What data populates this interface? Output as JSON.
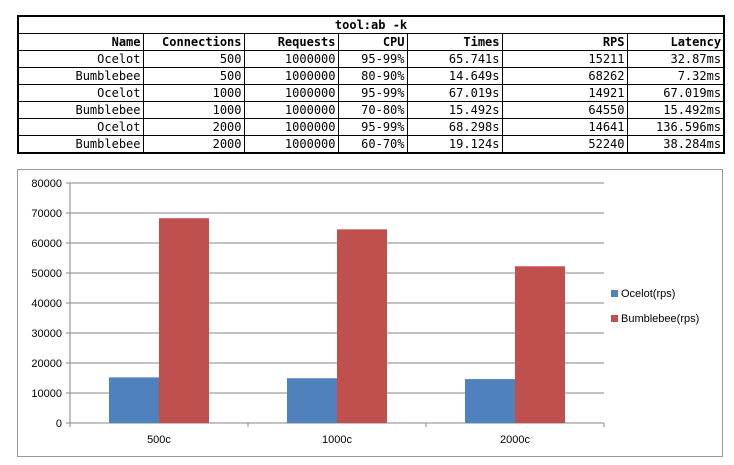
{
  "table": {
    "title": "tool:ab -k",
    "columns": [
      "Name",
      "Connections",
      "Requests",
      "CPU",
      "Times",
      "RPS",
      "Latency"
    ],
    "rows": [
      [
        "Ocelot",
        "500",
        "1000000",
        "95-99%",
        "65.741s",
        "15211",
        "32.87ms"
      ],
      [
        "Bumblebee",
        "500",
        "1000000",
        "80-90%",
        "14.649s",
        "68262",
        "7.32ms"
      ],
      [
        "Ocelot",
        "1000",
        "1000000",
        "95-99%",
        "67.019s",
        "14921",
        "67.019ms"
      ],
      [
        "Bumblebee",
        "1000",
        "1000000",
        "70-80%",
        "15.492s",
        "64550",
        "15.492ms"
      ],
      [
        "Ocelot",
        "2000",
        "1000000",
        "95-99%",
        "68.298s",
        "14641",
        "136.596ms"
      ],
      [
        "Bumblebee",
        "2000",
        "1000000",
        "60-70%",
        "19.124s",
        "52240",
        "38.284ms"
      ]
    ]
  },
  "chart_data": {
    "type": "bar",
    "categories": [
      "500c",
      "1000c",
      "2000c"
    ],
    "series": [
      {
        "name": "Ocelot(rps)",
        "values": [
          15211,
          14921,
          14641
        ],
        "color": "#4f81bd"
      },
      {
        "name": "Bumblebee(rps)",
        "values": [
          68262,
          64550,
          52240
        ],
        "color": "#c0504d"
      }
    ],
    "ylim": [
      0,
      80000
    ],
    "yticks": [
      0,
      10000,
      20000,
      30000,
      40000,
      50000,
      60000,
      70000,
      80000
    ],
    "grid": true,
    "legend": "right"
  }
}
